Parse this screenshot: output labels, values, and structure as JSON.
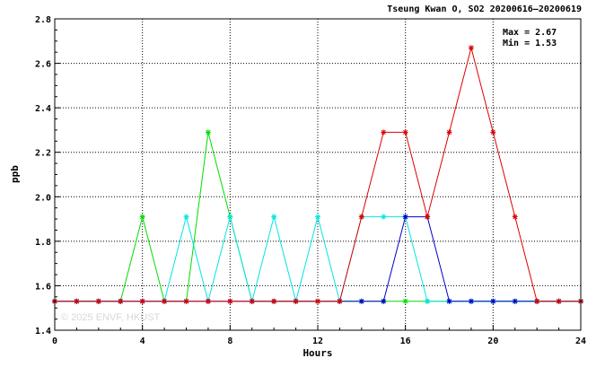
{
  "chart_data": {
    "type": "line",
    "title": "Tseung Kwan O, SO2 20200616–20200619",
    "xlabel": "Hours",
    "ylabel": "ppb",
    "xlim": [
      0,
      24
    ],
    "ylim": [
      1.4,
      2.8
    ],
    "x_ticks": [
      "0",
      "4",
      "8",
      "12",
      "16",
      "20",
      "24"
    ],
    "y_ticks": [
      "1.4",
      "1.6",
      "1.8",
      "2.0",
      "2.2",
      "2.4",
      "2.6",
      "2.8"
    ],
    "grid": true,
    "annotations": [
      "Max = 2.67",
      "Min = 1.53"
    ],
    "watermark": "© 2025  ENVF, HKUST",
    "x": [
      0,
      1,
      2,
      3,
      4,
      5,
      6,
      7,
      8,
      9,
      10,
      11,
      12,
      13,
      14,
      15,
      16,
      17,
      18,
      19,
      20,
      21,
      22,
      23,
      24
    ],
    "series": [
      {
        "color": "#00dd00",
        "values": [
          1.53,
          1.53,
          1.53,
          1.53,
          1.91,
          1.53,
          1.53,
          2.29,
          1.91,
          1.53,
          1.53,
          1.53,
          1.53,
          1.53,
          1.53,
          1.53,
          1.53,
          1.53,
          1.53,
          1.53,
          1.53,
          1.53,
          1.53,
          1.53,
          1.53
        ]
      },
      {
        "color": "#00e5e5",
        "values": [
          1.53,
          1.53,
          1.53,
          1.53,
          1.53,
          1.53,
          1.91,
          1.53,
          1.91,
          1.53,
          1.91,
          1.53,
          1.91,
          1.53,
          1.91,
          1.91,
          1.91,
          1.53,
          1.53,
          1.53,
          1.53,
          1.53,
          1.53,
          1.53,
          1.53
        ]
      },
      {
        "color": "#0000cc",
        "values": [
          1.53,
          1.53,
          1.53,
          1.53,
          1.53,
          1.53,
          1.53,
          1.53,
          1.53,
          1.53,
          1.53,
          1.53,
          1.53,
          1.53,
          1.53,
          1.53,
          1.91,
          1.91,
          1.53,
          1.53,
          1.53,
          1.53,
          1.53,
          1.53,
          1.53
        ]
      },
      {
        "color": "#dd0000",
        "values": [
          1.53,
          1.53,
          1.53,
          1.53,
          1.53,
          1.53,
          1.53,
          1.53,
          1.53,
          1.53,
          1.53,
          1.53,
          1.53,
          1.53,
          1.91,
          2.29,
          2.29,
          1.91,
          2.29,
          2.67,
          2.29,
          1.91,
          1.53,
          1.53,
          1.53
        ]
      }
    ]
  }
}
